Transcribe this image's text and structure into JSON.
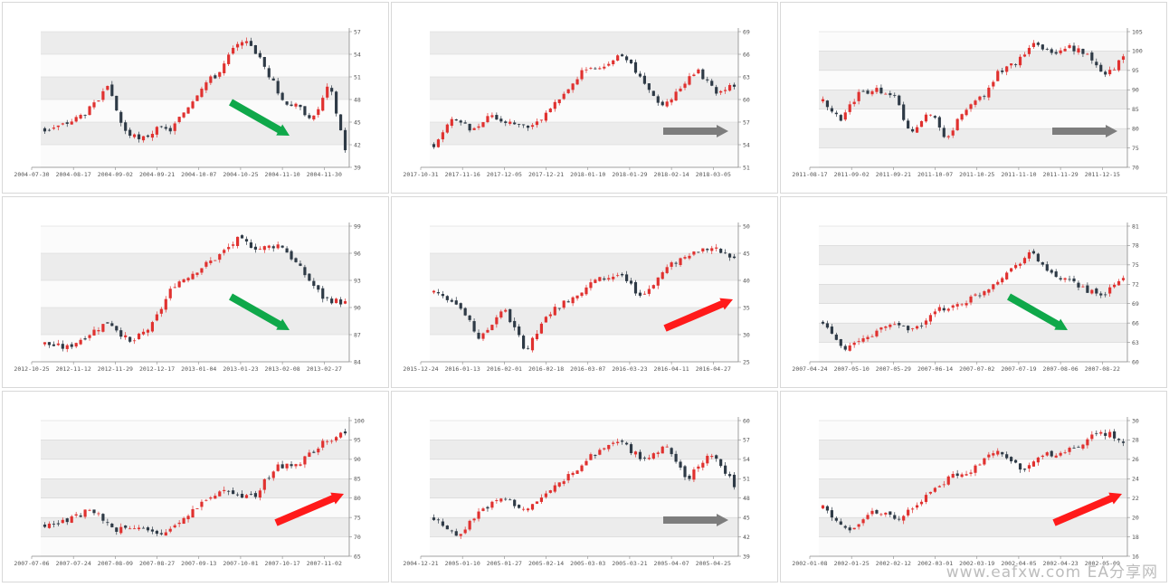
{
  "colors": {
    "up": "#e0312f",
    "down": "#2e3a46",
    "band": "#ececec",
    "arrow_green": "#0fa84a",
    "arrow_red": "#ff1a1a",
    "arrow_gray": "#7d7d7d",
    "axis": "#555555"
  },
  "watermark": "www.eafxw.com   EA分享网",
  "chart_data": [
    {
      "type": "candlestick",
      "grid": true,
      "trend_arrow": "down",
      "arrow_color": "green",
      "x_ticks": [
        "2004-07-30",
        "2004-08-17",
        "2004-09-02",
        "2004-09-21",
        "2004-10-07",
        "2004-10-25",
        "2004-11-10",
        "2004-11-30"
      ],
      "y_ticks": [
        39,
        42,
        45,
        48,
        51,
        54,
        57
      ],
      "ylim": [
        39,
        57
      ],
      "path": [
        44,
        44.5,
        45.5,
        47,
        49.5,
        44,
        42.5,
        44,
        44,
        47,
        50,
        51.5,
        55,
        55.5,
        52,
        48,
        47,
        45.5,
        50,
        41.5
      ]
    },
    {
      "type": "candlestick",
      "grid": true,
      "trend_arrow": "sideways",
      "arrow_color": "gray",
      "x_ticks": [
        "2017-10-31",
        "2017-11-16",
        "2017-12-05",
        "2017-12-21",
        "2018-01-10",
        "2018-01-29",
        "2018-02-14",
        "2018-03-05"
      ],
      "y_ticks": [
        51,
        54,
        57,
        60,
        63,
        66,
        69
      ],
      "ylim": [
        51,
        69
      ],
      "path": [
        54,
        57.5,
        56,
        58,
        57,
        56.5,
        58,
        61,
        64,
        64.5,
        66,
        63,
        59,
        61,
        64,
        61,
        62
      ]
    },
    {
      "type": "candlestick",
      "grid": true,
      "trend_arrow": "sideways",
      "arrow_color": "gray",
      "x_ticks": [
        "2011-08-17",
        "2011-09-02",
        "2011-09-21",
        "2011-10-07",
        "2011-10-25",
        "2011-11-10",
        "2011-11-29",
        "2011-12-15"
      ],
      "y_ticks": [
        70,
        75,
        80,
        85,
        90,
        95,
        100,
        105
      ],
      "ylim": [
        70,
        105
      ],
      "path": [
        87,
        82,
        89,
        90,
        89,
        78,
        85,
        77,
        85,
        88,
        95,
        97,
        102,
        99,
        101,
        99,
        94,
        98
      ]
    },
    {
      "type": "candlestick",
      "grid": true,
      "trend_arrow": "down",
      "arrow_color": "green",
      "x_ticks": [
        "2012-10-25",
        "2012-11-12",
        "2012-11-29",
        "2012-12-17",
        "2013-01-04",
        "2013-01-23",
        "2013-02-08",
        "2013-02-27"
      ],
      "y_ticks": [
        84,
        87,
        90,
        93,
        96,
        99
      ],
      "ylim": [
        84,
        99
      ],
      "path": [
        86,
        85.5,
        87,
        88.5,
        86,
        88,
        92.5,
        94,
        95.5,
        97.5,
        96.5,
        97,
        94,
        91,
        90.5
      ]
    },
    {
      "type": "candlestick",
      "grid": true,
      "trend_arrow": "up",
      "arrow_color": "red",
      "x_ticks": [
        "2015-12-24",
        "2016-01-13",
        "2016-02-01",
        "2016-02-18",
        "2016-03-07",
        "2016-03-23",
        "2016-04-11",
        "2016-04-27"
      ],
      "y_ticks": [
        25,
        30,
        35,
        40,
        45,
        50
      ],
      "ylim": [
        25,
        50
      ],
      "path": [
        38,
        36,
        29,
        35,
        27,
        34,
        37,
        40,
        41,
        37,
        42,
        45,
        46,
        44
      ]
    },
    {
      "type": "candlestick",
      "grid": true,
      "trend_arrow": "down",
      "arrow_color": "green",
      "x_ticks": [
        "2007-04-24",
        "2007-05-10",
        "2007-05-29",
        "2007-06-14",
        "2007-07-02",
        "2007-07-19",
        "2007-08-06",
        "2007-08-22"
      ],
      "y_ticks": [
        60,
        63,
        66,
        69,
        72,
        75,
        78,
        81
      ],
      "ylim": [
        60,
        81
      ],
      "path": [
        66,
        62,
        64,
        66,
        65,
        68,
        69,
        71,
        74,
        77,
        73,
        72,
        70,
        73
      ]
    },
    {
      "type": "candlestick",
      "grid": true,
      "trend_arrow": "up",
      "arrow_color": "red",
      "x_ticks": [
        "2007-07-06",
        "2007-07-24",
        "2007-08-09",
        "2007-08-27",
        "2007-09-13",
        "2007-10-01",
        "2007-10-17",
        "2007-11-02"
      ],
      "y_ticks": [
        65,
        70,
        75,
        80,
        85,
        90,
        95,
        100
      ],
      "ylim": [
        65,
        100
      ],
      "path": [
        73,
        74,
        77,
        72,
        73,
        70,
        75,
        80,
        82,
        80,
        88,
        89,
        94,
        97
      ]
    },
    {
      "type": "candlestick",
      "grid": true,
      "trend_arrow": "sideways",
      "arrow_color": "gray",
      "x_ticks": [
        "2004-12-21",
        "2005-01-10",
        "2005-01-27",
        "2005-02-14",
        "2005-03-03",
        "2005-03-21",
        "2005-04-07",
        "2005-04-25"
      ],
      "y_ticks": [
        39,
        42,
        45,
        48,
        51,
        54,
        57,
        60
      ],
      "ylim": [
        39,
        60
      ],
      "path": [
        45,
        42,
        46,
        48,
        46,
        49,
        52,
        55,
        57,
        54,
        56,
        51,
        55,
        50
      ]
    },
    {
      "type": "candlestick",
      "grid": true,
      "trend_arrow": "up",
      "arrow_color": "red",
      "x_ticks": [
        "2002-01-08",
        "2002-01-25",
        "2002-02-12",
        "2002-03-01",
        "2002-03-19",
        "2002-04-05",
        "2002-04-23",
        "2002-05-09"
      ],
      "y_ticks": [
        16,
        18,
        20,
        22,
        24,
        26,
        28,
        30
      ],
      "ylim": [
        16,
        30
      ],
      "path": [
        21,
        18.5,
        20.5,
        20,
        22,
        24,
        25,
        27,
        25,
        26.5,
        27,
        29,
        28
      ]
    }
  ]
}
